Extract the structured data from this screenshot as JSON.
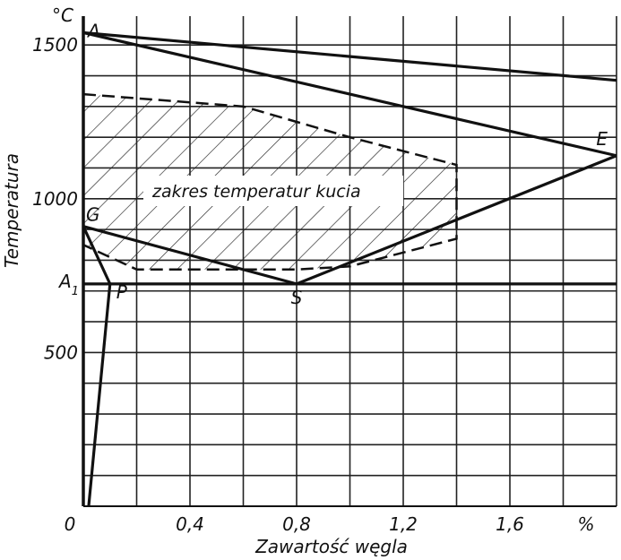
{
  "chart_data": {
    "type": "line",
    "title": "",
    "xlabel": "Zawartość węgla",
    "ylabel": "Temperatura",
    "x_unit": "%",
    "y_unit": "°C",
    "xlim": [
      0,
      2.0
    ],
    "ylim": [
      0,
      1570
    ],
    "x_ticks": [
      {
        "value": 0,
        "label": "0"
      },
      {
        "value": 0.4,
        "label": "0,4"
      },
      {
        "value": 0.8,
        "label": "0,8"
      },
      {
        "value": 1.2,
        "label": "1,2"
      },
      {
        "value": 1.6,
        "label": "1,6"
      }
    ],
    "y_ticks": [
      {
        "value": 500,
        "label": "500"
      },
      {
        "value": 1000,
        "label": "1000"
      },
      {
        "value": 1500,
        "label": "1500"
      }
    ],
    "x_grid": [
      0,
      0.2,
      0.4,
      0.6,
      0.8,
      1.0,
      1.2,
      1.4,
      1.6,
      1.8
    ],
    "y_grid": [
      0,
      100,
      200,
      300,
      400,
      500,
      600,
      700,
      800,
      900,
      1000,
      1100,
      1200,
      1300,
      1400,
      1500
    ],
    "points": [
      {
        "name": "A",
        "x": 0,
        "y": 1540
      },
      {
        "name": "G",
        "x": 0,
        "y": 910
      },
      {
        "name": "P",
        "x": 0.1,
        "y": 723
      },
      {
        "name": "S",
        "x": 0.8,
        "y": 723
      },
      {
        "name": "E",
        "x": 2.0,
        "y": 1140
      },
      {
        "name": "A1",
        "x": 0,
        "y": 723
      }
    ],
    "series": [
      {
        "id": "liquidus-1",
        "x": [
          0,
          2.0
        ],
        "y": [
          1540,
          1385
        ]
      },
      {
        "id": "liquidus-2",
        "x": [
          0,
          2.0
        ],
        "y": [
          1540,
          1140
        ]
      },
      {
        "id": "acm",
        "x": [
          0.8,
          2.0
        ],
        "y": [
          723,
          1140
        ]
      },
      {
        "id": "a3",
        "x": [
          0,
          0.8
        ],
        "y": [
          910,
          723
        ]
      },
      {
        "id": "gp",
        "x": [
          0,
          0.1
        ],
        "y": [
          910,
          723
        ]
      },
      {
        "id": "p-solvus",
        "x": [
          0.1,
          0.02
        ],
        "y": [
          723,
          0
        ]
      },
      {
        "id": "a1",
        "x": [
          0,
          2.0
        ],
        "y": [
          723,
          723
        ]
      }
    ],
    "regions": [
      {
        "label": "zakres temperatur kucia",
        "pattern": "hatched",
        "boundary_x": [
          0,
          0.6,
          1.0,
          1.4,
          1.4,
          1.0,
          0.8,
          0.2,
          0
        ],
        "boundary_y": [
          1340,
          1300,
          1200,
          1110,
          870,
          780,
          770,
          770,
          850
        ]
      }
    ]
  }
}
